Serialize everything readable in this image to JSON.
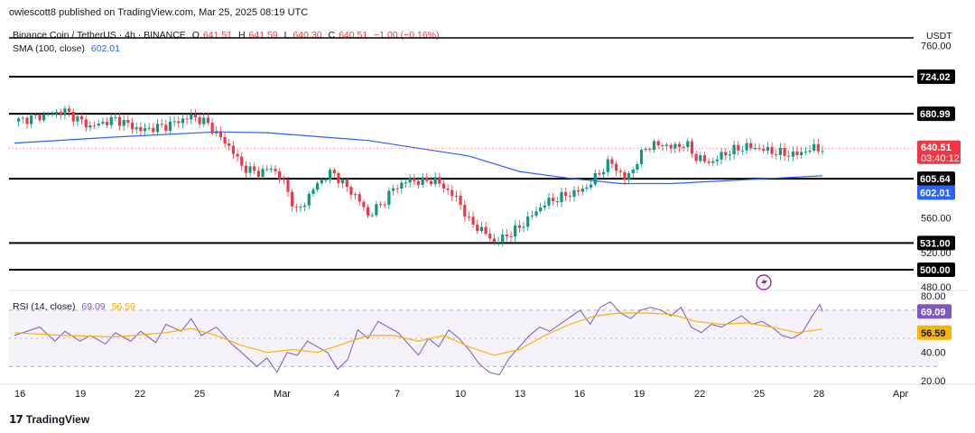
{
  "header": {
    "published": "owiescott8 published on TradingView.com, Mar 25, 2025 08:19 UTC"
  },
  "legend": {
    "symbol": "Binance Coin / TetherUS · 4h · BINANCE",
    "o_label": "O",
    "o": "641.51",
    "h_label": "H",
    "h": "641.59",
    "l_label": "L",
    "l": "640.30",
    "c_label": "C",
    "c": "640.51",
    "change": "−1.00 (−0.16%)",
    "sma_label": "SMA (100, close)",
    "sma_value": "602.01",
    "rsi_label": "RSI (14, close)",
    "rsi_value": "69.09",
    "rsi_ma_value": "56.59"
  },
  "currency": "USDT",
  "footer": {
    "brand": "TradingView",
    "logo": "17"
  },
  "colors": {
    "up": "#089981",
    "down": "#f23645",
    "sma": "#2962ff",
    "rsi": "#7e57c2",
    "rsi_ma": "#f7b500",
    "level": "#000000"
  },
  "chart_data": [
    {
      "type": "candlestick",
      "title": "Binance Coin / TetherUS · 4h · BINANCE",
      "y_ticks": [
        "760.00",
        "560.00",
        "520.00",
        "480.00"
      ],
      "ylim": [
        478,
        790
      ],
      "x_tick_labels": [
        "16",
        "19",
        "22",
        "25",
        "Mar",
        "4",
        "7",
        "10",
        "13",
        "16",
        "19",
        "22",
        "25",
        "28",
        "Apr"
      ],
      "horizontal_levels": [
        "724.02",
        "680.99",
        "605.64",
        "531.00",
        "500.00"
      ],
      "last_price": "640.51",
      "countdown": "03:40:12",
      "sma_label_value": "602.01",
      "price_path": [
        [
          0,
          672
        ],
        [
          2,
          684
        ],
        [
          3,
          666
        ],
        [
          4,
          675
        ],
        [
          5,
          662
        ],
        [
          6,
          667
        ],
        [
          7,
          678
        ],
        [
          7.6,
          671
        ],
        [
          8,
          658
        ],
        [
          8.6,
          640
        ],
        [
          9,
          620
        ],
        [
          9.6,
          612
        ],
        [
          10.2,
          618
        ],
        [
          10.6,
          605
        ],
        [
          11.2,
          566
        ],
        [
          11.6,
          583
        ],
        [
          12,
          600
        ],
        [
          12.6,
          614
        ],
        [
          13,
          600
        ],
        [
          13.6,
          583
        ],
        [
          14,
          563
        ],
        [
          14.6,
          578
        ],
        [
          15,
          594
        ],
        [
          15.6,
          604
        ],
        [
          16.2,
          602
        ],
        [
          16.6,
          605
        ],
        [
          17,
          596
        ],
        [
          17.6,
          580
        ],
        [
          18,
          556
        ],
        [
          18.6,
          544
        ],
        [
          19,
          532
        ],
        [
          19.4,
          538
        ],
        [
          20,
          549
        ],
        [
          20.6,
          566
        ],
        [
          21,
          577
        ],
        [
          21.6,
          584
        ],
        [
          22,
          588
        ],
        [
          22.6,
          594
        ],
        [
          23,
          607
        ],
        [
          23.6,
          626
        ],
        [
          24.2,
          604
        ],
        [
          24.6,
          622
        ],
        [
          25,
          642
        ],
        [
          25.6,
          646
        ],
        [
          26,
          642
        ],
        [
          26.6,
          646
        ],
        [
          27,
          630
        ],
        [
          27.6,
          624
        ],
        [
          28,
          633
        ],
        [
          28.6,
          640
        ],
        [
          29,
          643
        ],
        [
          29.6,
          640
        ],
        [
          30,
          637
        ],
        [
          30.6,
          634
        ],
        [
          31,
          634
        ],
        [
          31.6,
          641
        ],
        [
          32,
          640.51
        ]
      ],
      "sma_path": [
        [
          0,
          647
        ],
        [
          4,
          654
        ],
        [
          8,
          660
        ],
        [
          10,
          659
        ],
        [
          14,
          650
        ],
        [
          18,
          632
        ],
        [
          20,
          614
        ],
        [
          22,
          606
        ],
        [
          24,
          600
        ],
        [
          26,
          600
        ],
        [
          28,
          603
        ],
        [
          30,
          606
        ],
        [
          32,
          609
        ]
      ]
    },
    {
      "type": "line",
      "title": "RSI (14, close)",
      "y_ticks": [
        "80.00",
        "40.00",
        "20.00"
      ],
      "ylim": [
        18,
        84
      ],
      "bands": [
        70,
        30
      ],
      "rsi_label_value": "69.09",
      "rsi_ma_label_value": "56.59",
      "series": [
        {
          "name": "RSI",
          "points": [
            [
              0,
              52
            ],
            [
              1,
              58
            ],
            [
              1.6,
              48
            ],
            [
              2,
              55
            ],
            [
              2.6,
              48
            ],
            [
              3,
              52
            ],
            [
              3.6,
              46
            ],
            [
              4,
              54
            ],
            [
              4.6,
              48
            ],
            [
              5,
              55
            ],
            [
              5.6,
              47
            ],
            [
              6,
              60
            ],
            [
              6.6,
              55
            ],
            [
              7,
              64
            ],
            [
              7.4,
              52
            ],
            [
              8,
              58
            ],
            [
              8.6,
              46
            ],
            [
              9,
              40
            ],
            [
              9.6,
              30
            ],
            [
              10,
              36
            ],
            [
              10.4,
              26
            ],
            [
              10.8,
              40
            ],
            [
              11.2,
              38
            ],
            [
              11.6,
              48
            ],
            [
              12,
              44
            ],
            [
              12.4,
              40
            ],
            [
              12.8,
              28
            ],
            [
              13.2,
              35
            ],
            [
              13.6,
              56
            ],
            [
              14,
              50
            ],
            [
              14.4,
              62
            ],
            [
              14.8,
              58
            ],
            [
              15.2,
              54
            ],
            [
              15.6,
              46
            ],
            [
              16,
              38
            ],
            [
              16.4,
              50
            ],
            [
              16.8,
              44
            ],
            [
              17.2,
              56
            ],
            [
              17.6,
              50
            ],
            [
              18,
              42
            ],
            [
              18.4,
              32
            ],
            [
              18.8,
              26
            ],
            [
              19.2,
              24
            ],
            [
              19.6,
              36
            ],
            [
              20,
              44
            ],
            [
              20.4,
              52
            ],
            [
              20.8,
              58
            ],
            [
              21.2,
              55
            ],
            [
              21.6,
              60
            ],
            [
              22,
              65
            ],
            [
              22.4,
              70
            ],
            [
              22.8,
              60
            ],
            [
              23.2,
              72
            ],
            [
              23.6,
              76
            ],
            [
              24,
              68
            ],
            [
              24.4,
              64
            ],
            [
              24.8,
              70
            ],
            [
              25.2,
              72
            ],
            [
              25.6,
              70
            ],
            [
              26,
              66
            ],
            [
              26.4,
              72
            ],
            [
              26.8,
              58
            ],
            [
              27.2,
              54
            ],
            [
              27.6,
              60
            ],
            [
              28,
              58
            ],
            [
              28.4,
              62
            ],
            [
              28.8,
              66
            ],
            [
              29.2,
              60
            ],
            [
              29.6,
              62
            ],
            [
              30,
              58
            ],
            [
              30.4,
              52
            ],
            [
              30.8,
              50
            ],
            [
              31.2,
              54
            ],
            [
              31.6,
              66
            ],
            [
              31.9,
              74
            ],
            [
              32,
              69.09
            ]
          ]
        },
        {
          "name": "RSI-based MA",
          "points": [
            [
              0,
              54
            ],
            [
              2,
              52
            ],
            [
              4,
              51
            ],
            [
              6,
              54
            ],
            [
              7,
              57
            ],
            [
              8,
              52
            ],
            [
              9,
              45
            ],
            [
              10,
              40
            ],
            [
              11,
              42
            ],
            [
              12,
              40
            ],
            [
              13,
              46
            ],
            [
              14,
              52
            ],
            [
              15,
              52
            ],
            [
              16,
              48
            ],
            [
              17,
              52
            ],
            [
              18,
              44
            ],
            [
              19,
              38
            ],
            [
              20,
              42
            ],
            [
              21,
              52
            ],
            [
              22,
              60
            ],
            [
              23,
              66
            ],
            [
              24,
              68
            ],
            [
              25,
              68
            ],
            [
              26,
              67
            ],
            [
              27,
              62
            ],
            [
              28,
              60
            ],
            [
              29,
              61
            ],
            [
              30,
              58
            ],
            [
              31,
              54
            ],
            [
              32,
              56.59
            ]
          ]
        }
      ]
    }
  ]
}
